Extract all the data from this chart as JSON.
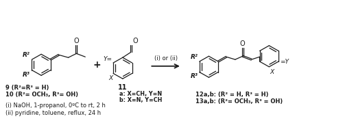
{
  "bg_color": "#ffffff",
  "text_color": "#1a1a1a",
  "figsize": [
    5.0,
    1.8
  ],
  "dpi": 100,
  "lw": 0.9,
  "ring_r": 14,
  "structures": {
    "reactant1_label": "9 (R²=R³ = H)",
    "reactant1_label2": "10 (R²= OCH₃, R³= OH)",
    "reactant2_label": "11",
    "reactant2_a": "a: X=CH, Y=N",
    "reactant2_b": "b: X=N, Y=CH",
    "product_label1": "12a,b: (R² = H, R³ = H)",
    "product_label2": "13a,b: (R²= OCH₃, R³ = OH)",
    "arrow_label": "(i) or (ii)",
    "condition1": "(i) NaOH, 1-propanol, 0ºC to rt, 2 h",
    "condition2": "(ii) pyridine, toluene, reflux, 24 h",
    "label_R2": "R²",
    "label_R3": "R³",
    "label_O": "O",
    "label_X": "X",
    "label_Y": "Y",
    "label_plus": "+",
    "label_11": "11"
  }
}
